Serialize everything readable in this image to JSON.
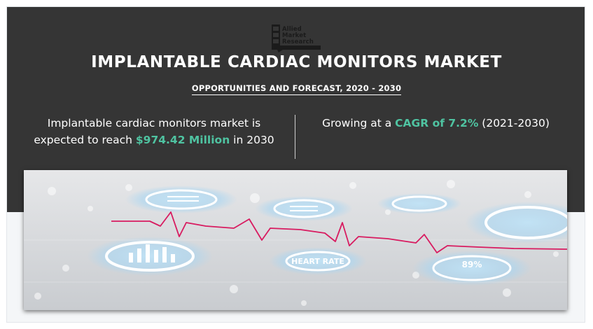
{
  "brand": {
    "logo_lines": [
      "Allied",
      "Market",
      "Research"
    ]
  },
  "header": {
    "title": "IMPLANTABLE CARDIAC MONITORS MARKET",
    "subtitle": "OPPORTUNITIES AND FORECAST, 2020 - 2030"
  },
  "stats": {
    "left": {
      "line1": "Implantable cardiac monitors market is",
      "line2_prefix": "expected to reach ",
      "value": "$974.42 Million",
      "line2_suffix": " in 2030"
    },
    "right": {
      "prefix": "Growing at a ",
      "value": "CAGR of 7.2%",
      "suffix": " (2021-2030)"
    }
  },
  "colors": {
    "banner_background": "#353535",
    "accent": "#4fc3a1",
    "ecg_line": "#d81b60"
  },
  "hero_image": {
    "icon_labels": [
      "HEART RATE",
      "89%"
    ]
  }
}
